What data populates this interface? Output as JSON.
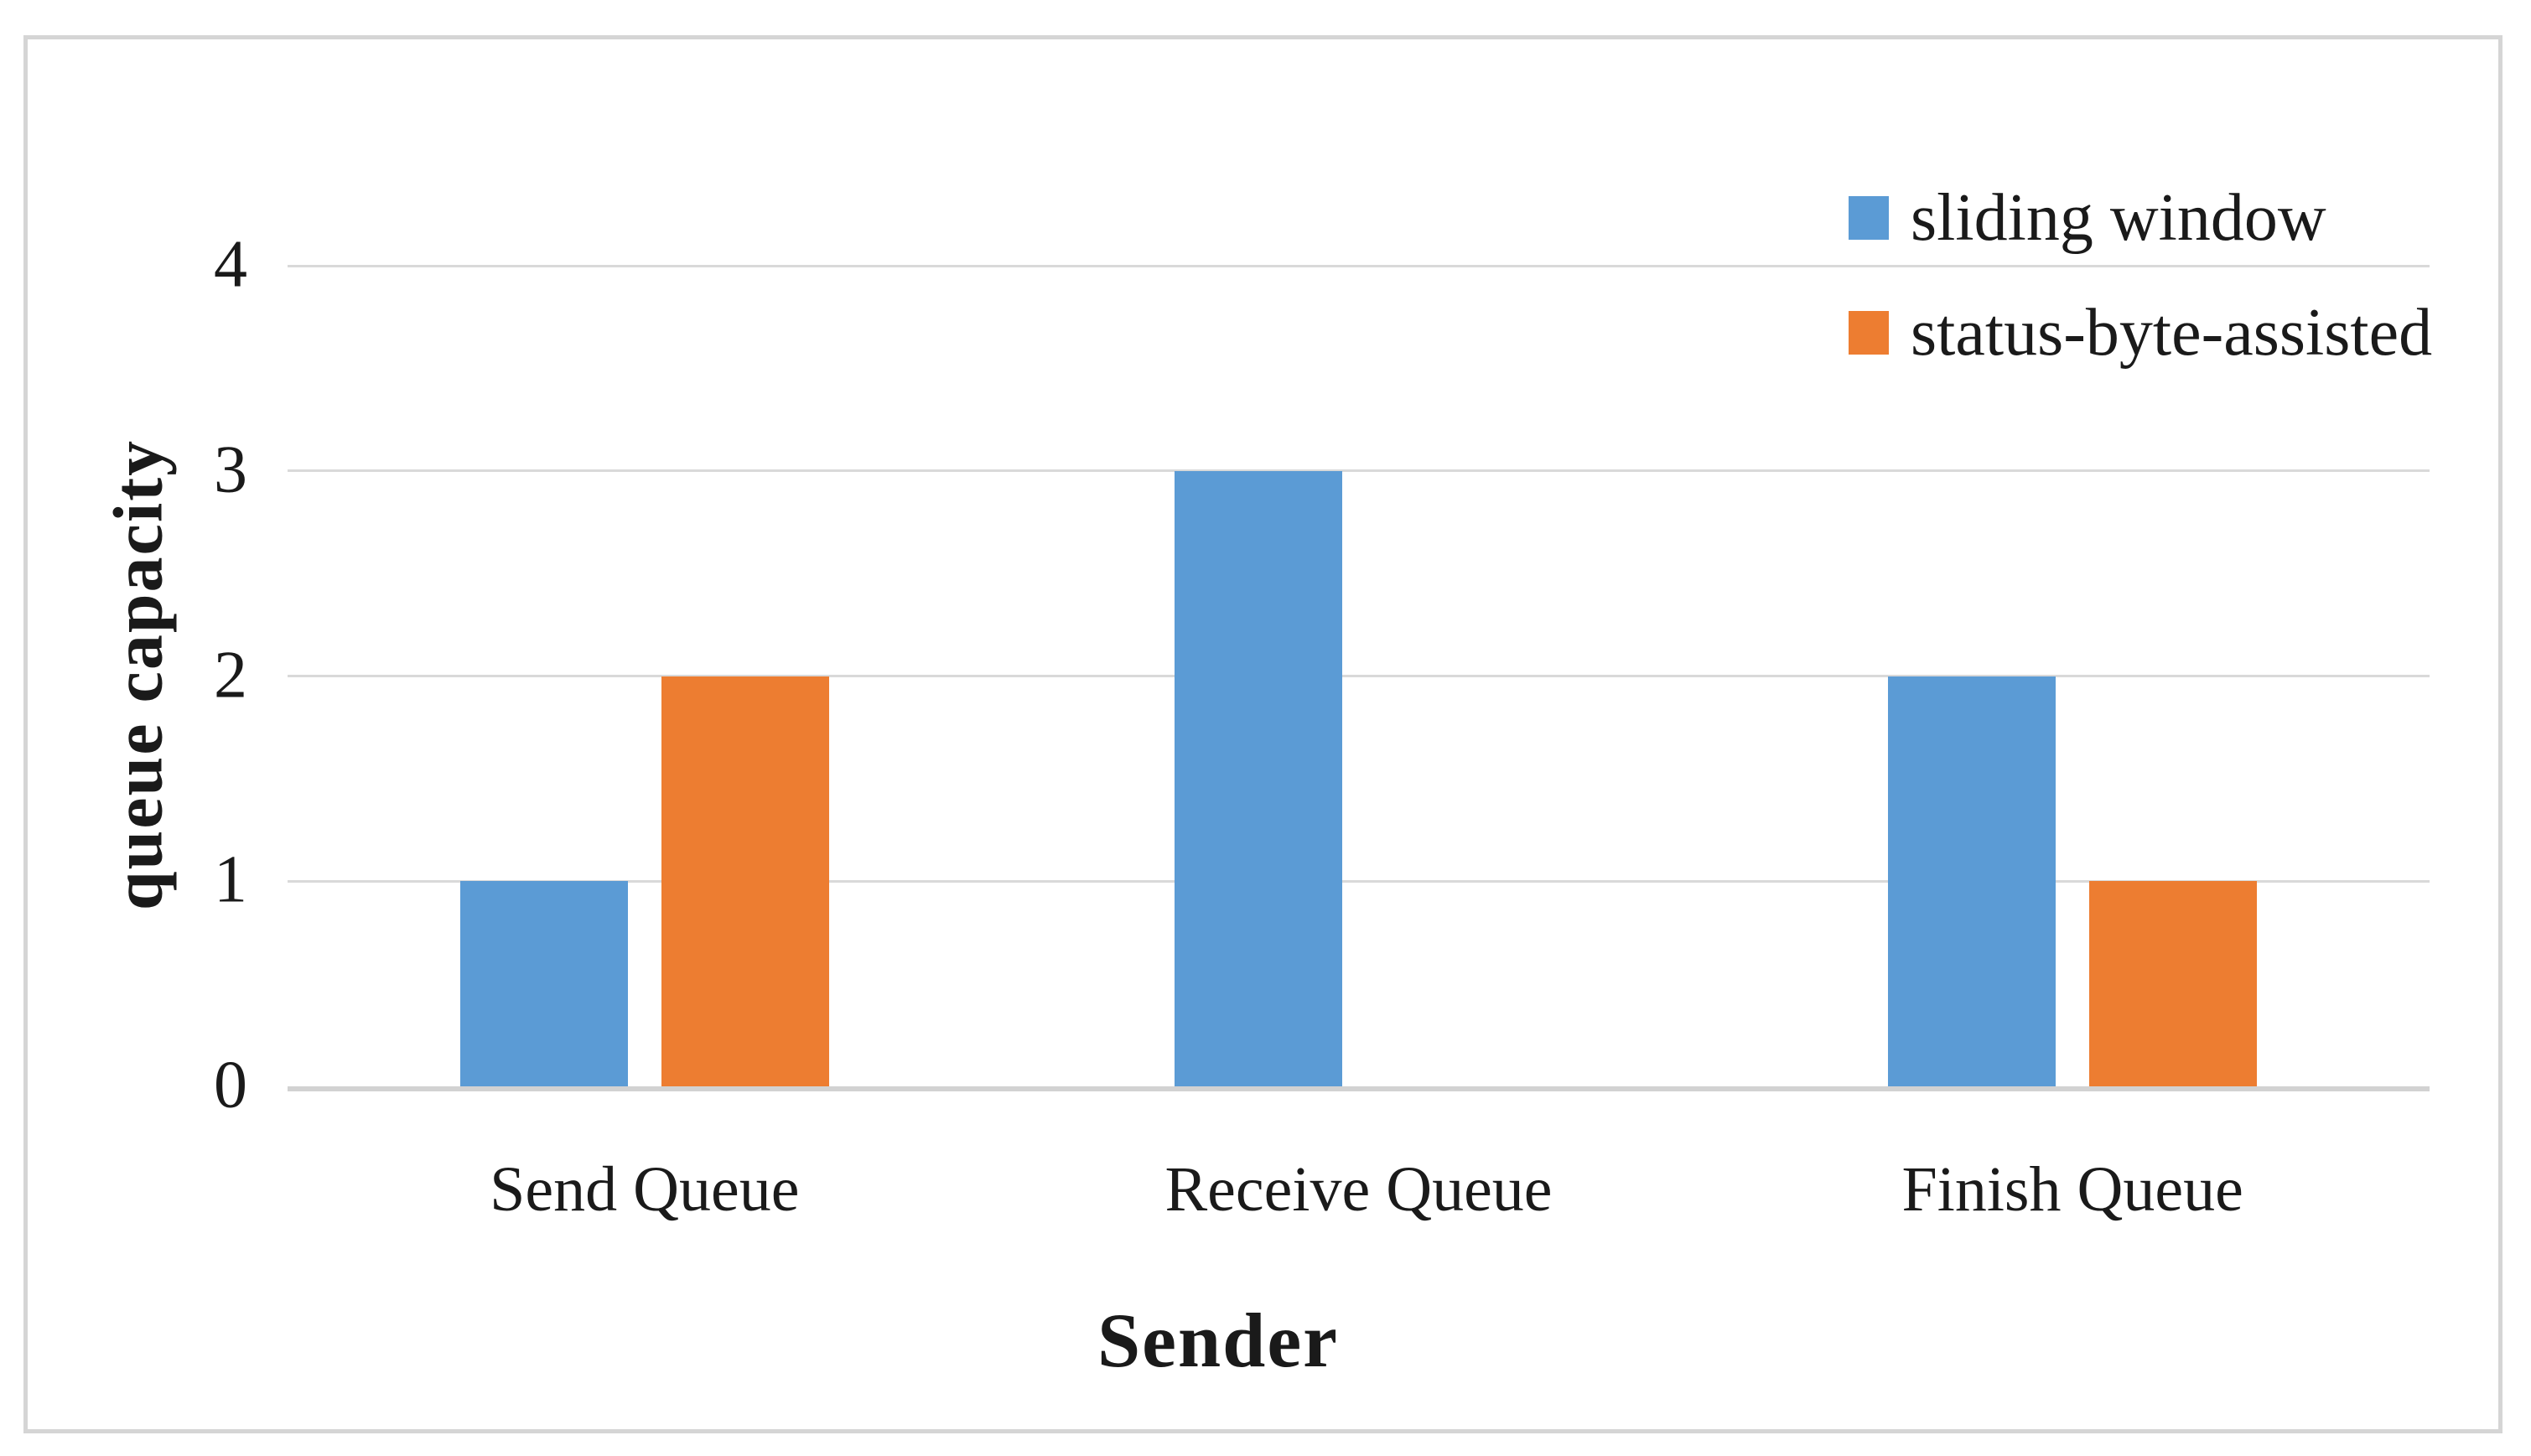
{
  "chart_data": {
    "type": "bar",
    "title": "",
    "categories": [
      "Send Queue",
      "Receive Queue",
      "Finish Queue"
    ],
    "series": [
      {
        "name": "sliding window",
        "color": "#5B9BD5",
        "values": [
          1,
          3,
          2
        ]
      },
      {
        "name": "status-byte-assisted",
        "color": "#ED7D31",
        "values": [
          2,
          0,
          1
        ]
      }
    ],
    "xlabel": "Sender",
    "ylabel": "queue capacity",
    "y_ticks": [
      0,
      1,
      2,
      3,
      4
    ],
    "ylim": [
      0,
      4.5
    ],
    "grid": true,
    "legend_position": "top-right"
  },
  "colors": {
    "background": "#FFFFFF",
    "frame_border": "#D5D5D5",
    "gridline": "#D9D9D9",
    "axis_line": "#D2D2D2",
    "text": "#1A1A1A"
  }
}
